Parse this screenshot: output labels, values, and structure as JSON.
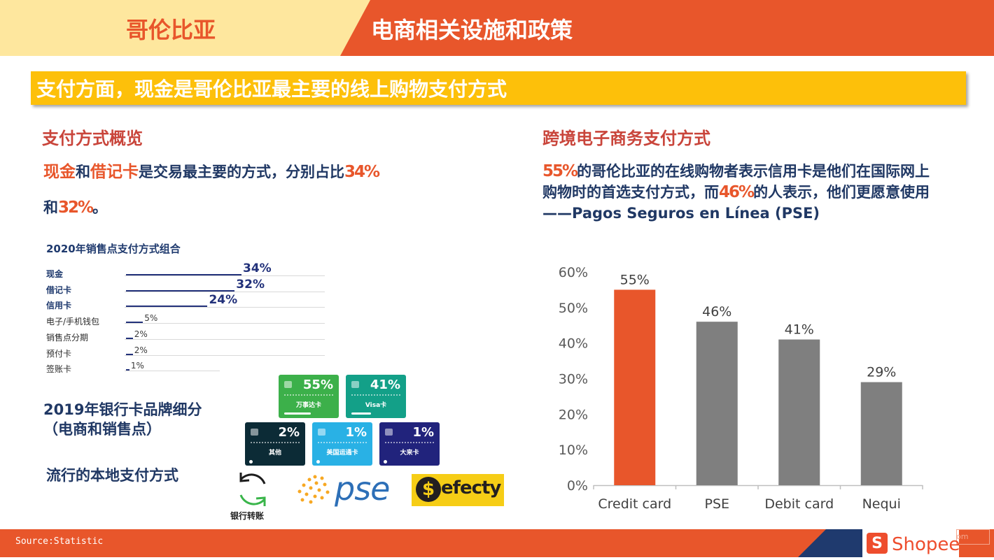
{
  "header": {
    "country": "哥伦比亚",
    "title": "电商相关设施和政策"
  },
  "banner": "支付方面，现金是哥伦比亚最主要的线上购物支付方式",
  "left": {
    "heading": "支付方式概览",
    "intro": {
      "cash": "现金",
      "and": "和",
      "debit": "借记卡",
      "mid": "是交易最主要的方式，分别占比",
      "pct1": "34%",
      "and2": "和",
      "pct2": "32%",
      "end": "。"
    },
    "mix": {
      "title": "2020年销售点支付方式组合",
      "rows": [
        {
          "label": "现金",
          "value": 34,
          "value_text": "34%",
          "bold": true
        },
        {
          "label": "借记卡",
          "value": 32,
          "value_text": "32%",
          "bold": true
        },
        {
          "label": "信用卡",
          "value": 24,
          "value_text": "24%",
          "bold": true
        },
        {
          "label": "电子/手机钱包",
          "value": 5,
          "value_text": "5%",
          "bold": false
        },
        {
          "label": "销售点分期",
          "value": 2,
          "value_text": "2%",
          "bold": false
        },
        {
          "label": "预付卡",
          "value": 2,
          "value_text": "2%",
          "bold": false
        },
        {
          "label": "签账卡",
          "value": 1,
          "value_text": "1%",
          "bold": false
        }
      ]
    },
    "brand_title_line1": "2019年银行卡品牌细分",
    "brand_title_line2": "（电商和销售点）",
    "cards": [
      {
        "pct": "55%",
        "name": "万事达卡",
        "color": "#3cb04a"
      },
      {
        "pct": "41%",
        "name": "Visa卡",
        "color": "#13a088"
      },
      {
        "pct": "2%",
        "name": "其他",
        "color": "#0c2b36"
      },
      {
        "pct": "1%",
        "name": "美国运通卡",
        "color": "#29b1e5"
      },
      {
        "pct": "1%",
        "name": "大来卡",
        "color": "#21237c"
      }
    ],
    "local_title": "流行的本地支付方式",
    "local_methods": {
      "bank_transfer": "银行转账",
      "pse": "pse",
      "efecty": "efecty"
    }
  },
  "right": {
    "heading": "跨境电子商务支付方式",
    "para": {
      "pct1": "55%",
      "text1": "的哥伦比亚的在线购物者表示信用卡是他们在国际网上购物时的首选支付方式，而",
      "pct2": "46%",
      "text2": "的人表示，他们更愿意使用",
      "dash": "——",
      "pse": "Pagos Seguros en Línea (PSE)"
    }
  },
  "chart_data": {
    "type": "bar",
    "categories": [
      "Credit card",
      "PSE",
      "Debit card",
      "Nequi"
    ],
    "values": [
      55,
      46,
      41,
      29
    ],
    "value_labels": [
      "55%",
      "46%",
      "41%",
      "29%"
    ],
    "colors": [
      "#e8562b",
      "#7f7f7f",
      "#7f7f7f",
      "#7f7f7f"
    ],
    "yticks": [
      "0%",
      "10%",
      "20%",
      "30%",
      "40%",
      "50%",
      "60%"
    ],
    "ylim": [
      0,
      60
    ],
    "grid": false,
    "title": "",
    "xlabel": "",
    "ylabel": ""
  },
  "footer": {
    "source": "Source:Statistic",
    "brand": "Shopee",
    "bag_letter": "S",
    "com": "om"
  },
  "colors": {
    "accent": "#e8562b",
    "banner": "#fdc00a",
    "header_left": "#fee79e",
    "navy": "#203864"
  }
}
